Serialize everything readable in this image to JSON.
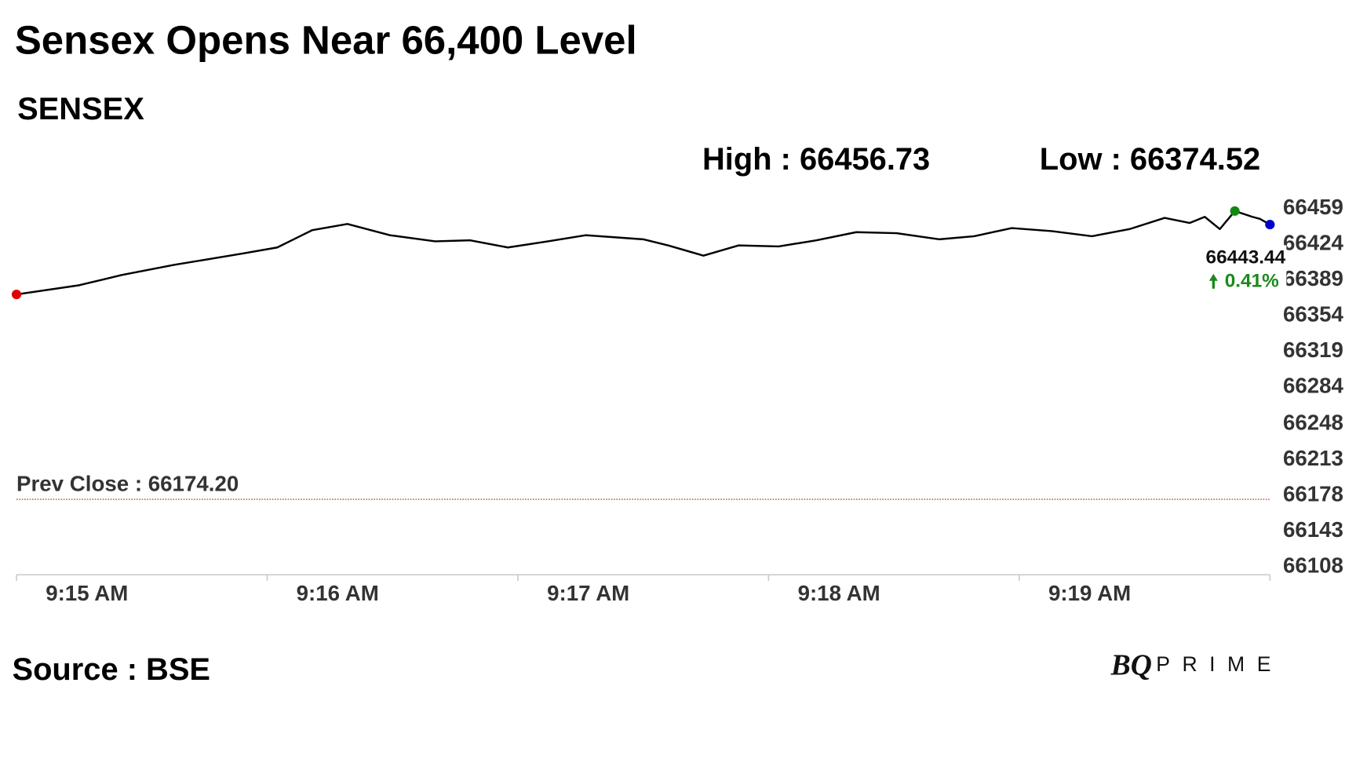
{
  "chart_data": {
    "type": "line",
    "title": "Sensex Opens Near 66,400 Level",
    "subtitle": "SENSEX",
    "high_text": "High : 66456.73",
    "low_text": "Low : 66374.52",
    "prev_close": {
      "value": 66174.2,
      "label": "Prev Close : 66174.20",
      "color": "#c0392b"
    },
    "change_label": "0.41%",
    "change_color": "#1a8a1a",
    "source": "Source : BSE",
    "logo": {
      "mark": "BQ",
      "word": "PRIME"
    },
    "x": [
      0,
      0.25,
      0.42,
      0.63,
      0.9,
      1.04,
      1.18,
      1.32,
      1.49,
      1.67,
      1.81,
      1.96,
      2.12,
      2.27,
      2.5,
      2.6,
      2.74,
      2.88,
      3.04,
      3.19,
      3.35,
      3.51,
      3.68,
      3.82,
      3.97,
      4.13,
      4.29,
      4.44,
      4.58,
      4.68,
      4.74,
      4.8,
      4.86,
      4.93,
      4.96,
      5
    ],
    "series": [
      {
        "name": "SENSEX",
        "color": "#000000",
        "values": [
          66375,
          66384,
          66394,
          66404,
          66415,
          66421,
          66438,
          66444,
          66433,
          66427,
          66428,
          66421,
          66427,
          66433,
          66429,
          66423,
          66413,
          66423,
          66422,
          66428,
          66436,
          66435,
          66429,
          66432,
          66440,
          66437,
          66432,
          66439,
          66450,
          66445,
          66451,
          66439,
          66456.73,
          66451,
          66449,
          66443.44
        ]
      }
    ],
    "start_marker_color": "#e00000",
    "high_marker_color": "#118811",
    "end_marker_color": "#0000cc",
    "xlim": [
      0,
      5
    ],
    "xticks": [
      {
        "value": 0,
        "label": "9:15 AM"
      },
      {
        "value": 1,
        "label": "9:16 AM"
      },
      {
        "value": 2,
        "label": "9:17 AM"
      },
      {
        "value": 3,
        "label": "9:18 AM"
      },
      {
        "value": 4,
        "label": "9:19 AM"
      }
    ],
    "ylim": [
      66108,
      66459
    ],
    "yticks": [
      66108,
      66143,
      66178,
      66213,
      66248,
      66284,
      66319,
      66354,
      66389,
      66424,
      66459
    ]
  }
}
